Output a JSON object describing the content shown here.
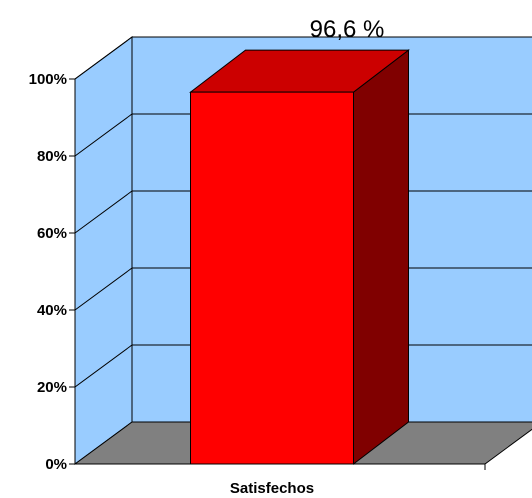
{
  "chart_data": {
    "type": "bar",
    "categories": [
      "Satisfechos"
    ],
    "values": [
      96.6
    ],
    "data_labels": [
      "96,6 %"
    ],
    "yticks": [
      "0%",
      "20%",
      "40%",
      "60%",
      "80%",
      "100%"
    ],
    "ylim": [
      0,
      100
    ],
    "grid": true,
    "three_d": true,
    "colors": {
      "wall": "#99ccff",
      "floor": "#808080",
      "bar_front": "#ff0000",
      "bar_top": "#cc0000",
      "bar_side": "#800000",
      "lines": "#000000"
    }
  }
}
